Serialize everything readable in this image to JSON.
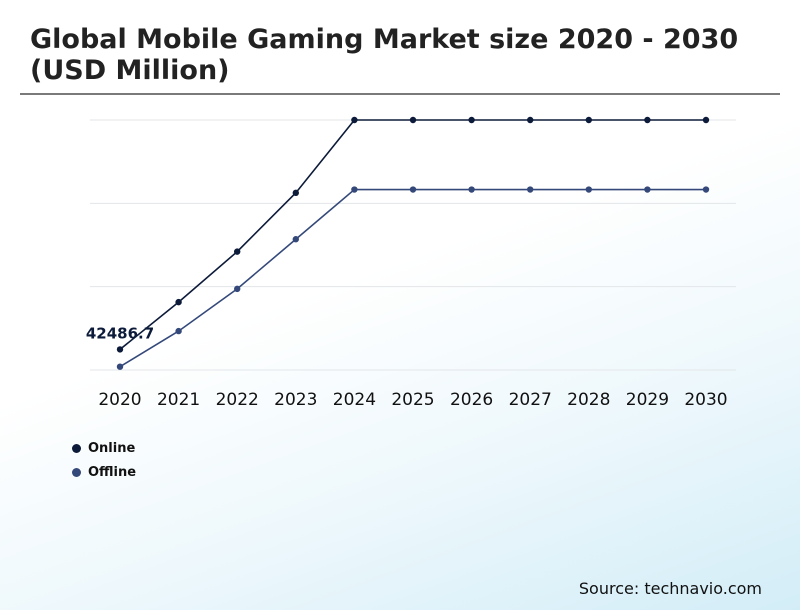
{
  "chart_data": {
    "type": "line",
    "title": "Global Mobile Gaming Market size 2020 - 2030 (USD Million)",
    "categories": [
      "2020",
      "2021",
      "2022",
      "2023",
      "2024",
      "2025",
      "2026",
      "2027",
      "2028",
      "2029",
      "2030"
    ],
    "series": [
      {
        "name": "Online",
        "color": "#0d1b3a",
        "values": [
          42486.7,
          48200,
          54300,
          61400,
          70200,
          70200,
          70200,
          70200,
          70200,
          70200,
          70200
        ]
      },
      {
        "name": "Offline",
        "color": "#34497a",
        "values": [
          40400,
          44700,
          49800,
          55800,
          61800,
          61800,
          61800,
          61800,
          61800,
          61800,
          61800
        ]
      }
    ],
    "data_labels": [
      {
        "series": "Online",
        "category": "2020",
        "text": "42486.7"
      }
    ],
    "ylim": [
      40000,
      70200
    ],
    "grid": true,
    "legend_position": "bottom-left",
    "source": "Source: technavio.com"
  }
}
